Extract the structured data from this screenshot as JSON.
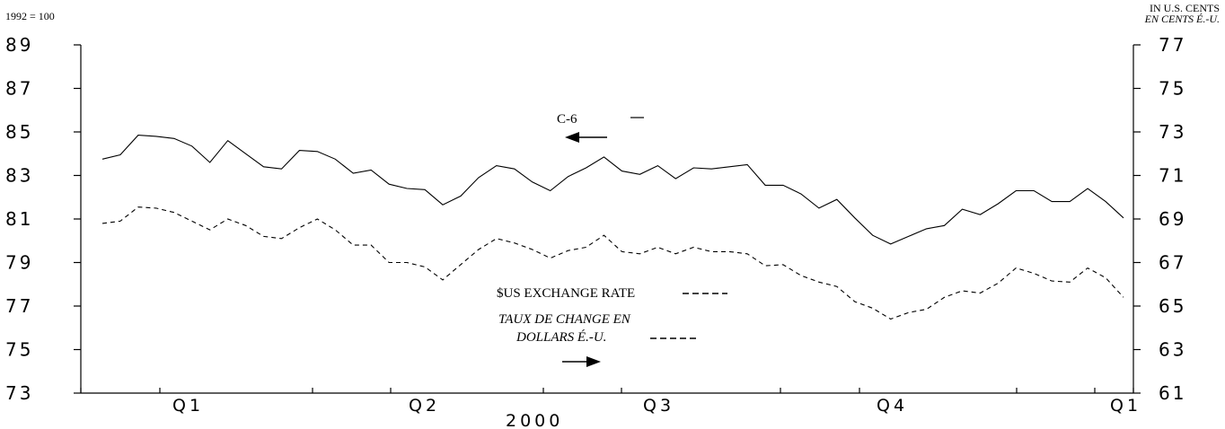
{
  "chart_data": {
    "type": "line",
    "left_unit_label": "1992 = 100",
    "right_unit_label": [
      "IN U.S. CENTS",
      "EN CENTS É.-U."
    ],
    "left_axis": {
      "ylim": [
        73,
        89
      ],
      "ticks": [
        "89",
        "87",
        "85",
        "83",
        "81",
        "79",
        "77",
        "75",
        "73"
      ]
    },
    "right_axis": {
      "ylim": [
        61,
        77
      ],
      "ticks": [
        "77",
        "75",
        "73",
        "71",
        "69",
        "67",
        "65",
        "63",
        "61"
      ]
    },
    "x_tick_labels": [
      "Q1",
      "Q2",
      "Q3",
      "Q4",
      "Q1"
    ],
    "x_title": "2000",
    "grid": false,
    "series": [
      {
        "name": "C-6",
        "axis": "left",
        "style": "solid",
        "values": [
          83.75,
          83.95,
          84.85,
          84.8,
          84.7,
          84.35,
          83.6,
          84.6,
          84.0,
          83.4,
          83.3,
          84.15,
          84.1,
          83.75,
          83.1,
          83.25,
          82.6,
          82.4,
          82.35,
          81.65,
          82.05,
          82.9,
          83.45,
          83.3,
          82.7,
          82.3,
          82.95,
          83.35,
          83.85,
          83.2,
          83.05,
          83.45,
          82.85,
          83.35,
          83.3,
          83.4,
          83.5,
          82.55,
          82.55,
          82.15,
          81.5,
          81.9,
          81.05,
          80.25,
          79.85,
          80.2,
          80.55,
          80.7,
          81.45,
          81.2,
          81.7,
          82.3,
          82.3,
          81.8,
          81.8,
          82.4,
          81.8,
          81.05
        ]
      },
      {
        "name": "$US EXCHANGE RATE",
        "axis": "right",
        "style": "dashed",
        "values": [
          68.8,
          68.9,
          69.55,
          69.5,
          69.3,
          68.9,
          68.5,
          69.0,
          68.7,
          68.2,
          68.1,
          68.6,
          69.0,
          68.5,
          67.8,
          67.8,
          67.0,
          67.0,
          66.8,
          66.2,
          66.9,
          67.6,
          68.1,
          67.9,
          67.6,
          67.2,
          67.55,
          67.7,
          68.25,
          67.5,
          67.4,
          67.7,
          67.4,
          67.7,
          67.5,
          67.5,
          67.4,
          66.85,
          66.9,
          66.4,
          66.1,
          65.9,
          65.2,
          64.9,
          64.4,
          64.7,
          64.85,
          65.4,
          65.7,
          65.6,
          66.05,
          66.75,
          66.5,
          66.15,
          66.1,
          66.75,
          66.3,
          65.4
        ]
      }
    ],
    "annotations": {
      "c6_label": "C-6",
      "fx_label_en": "$US EXCHANGE RATE",
      "fx_label_fr_1": "TAUX DE CHANGE EN",
      "fx_label_fr_2": "DOLLARS É.-U."
    }
  }
}
